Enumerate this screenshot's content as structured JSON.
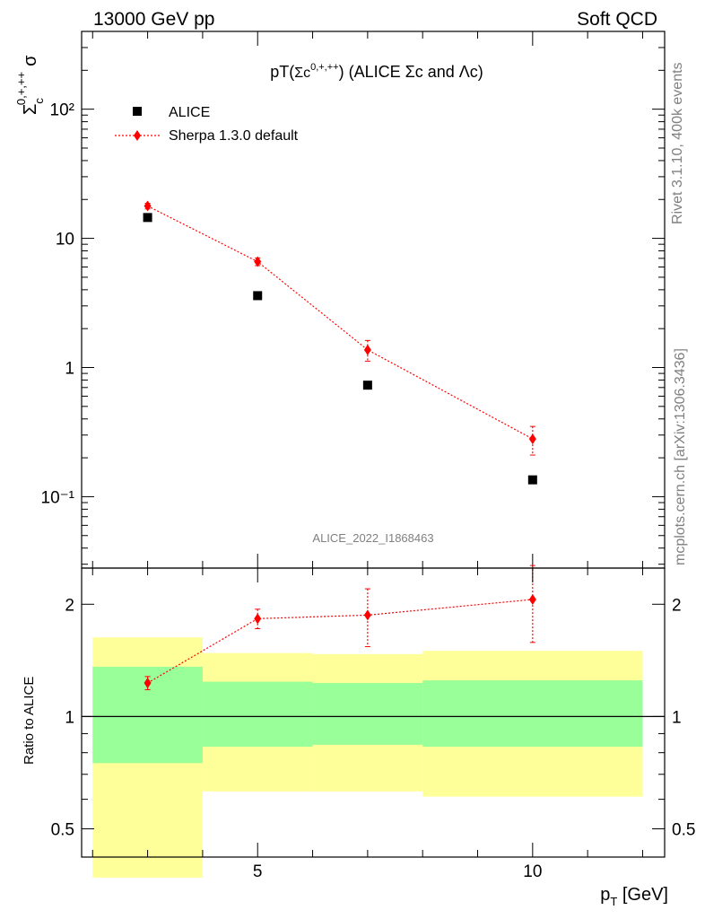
{
  "header": {
    "left": "13000 GeV pp",
    "right": "Soft QCD"
  },
  "side": {
    "rivet": "Rivet 3.1.10,  400k events",
    "mcplots": "mcplots.cern.ch [arXiv:1306.3436]"
  },
  "plot_title": "pT(Σc0,+,++) (ALICE Σc and Λc)",
  "plot_title_parts": {
    "pre": "pT(",
    "sym": "Σc",
    "sup": "0,+,++",
    "post": ") (ALICE Σc and Λc)"
  },
  "analysis_id": "ALICE_2022_I1868463",
  "ylabel": {
    "base": "Σ",
    "sub": "c",
    "sup": "0,+,++",
    "suffix": "σ"
  },
  "xlabel": {
    "base": "p",
    "sub": "T",
    "suffix": " [GeV]"
  },
  "ratio_ylabel": "Ratio to ALICE",
  "legend": [
    {
      "label": "ALICE"
    },
    {
      "label": "Sherpa 1.3.0 default"
    }
  ],
  "colors": {
    "data": "#000000",
    "mc": "#ff0000",
    "band_inner": "#99ff99",
    "band_outer": "#ffff99"
  },
  "chart_data": [
    {
      "type": "scatter",
      "xscale": "linear",
      "yscale": "log",
      "xlim": [
        1.8,
        12.4
      ],
      "ylim": [
        0.028,
        400
      ],
      "x_ticks": [
        "5",
        "10"
      ],
      "y_ticks": [
        "10⁻¹",
        "1",
        "10",
        "10²"
      ],
      "legend_position": "top-left",
      "series": [
        {
          "name": "ALICE",
          "x": [
            3,
            5,
            7,
            10
          ],
          "y": [
            14.5,
            3.6,
            0.73,
            0.135
          ],
          "x_bins": [
            [
              2,
              4
            ],
            [
              4,
              6
            ],
            [
              6,
              8
            ],
            [
              8,
              12
            ]
          ]
        },
        {
          "name": "Sherpa 1.3.0 default",
          "x": [
            3,
            5,
            7,
            10
          ],
          "y": [
            17.8,
            6.6,
            1.37,
            0.28
          ],
          "yerr_lo": [
            0.9,
            0.45,
            0.25,
            0.07
          ],
          "yerr_hi": [
            0.9,
            0.45,
            0.25,
            0.07
          ]
        }
      ]
    },
    {
      "type": "scatter",
      "xscale": "linear",
      "yscale": "log",
      "xlim": [
        1.8,
        12.4
      ],
      "ylim": [
        0.42,
        2.5
      ],
      "y_ticks": [
        "0.5",
        "1",
        "2"
      ],
      "ylabel": "Ratio to ALICE",
      "bands": [
        {
          "x": [
            2,
            4
          ],
          "inner": [
            0.75,
            1.36
          ],
          "outer": [
            0.37,
            1.63
          ]
        },
        {
          "x": [
            4,
            6
          ],
          "inner": [
            0.83,
            1.24
          ],
          "outer": [
            0.63,
            1.48
          ]
        },
        {
          "x": [
            6,
            8
          ],
          "inner": [
            0.84,
            1.23
          ],
          "outer": [
            0.63,
            1.47
          ]
        },
        {
          "x": [
            8,
            12
          ],
          "inner": [
            0.83,
            1.25
          ],
          "outer": [
            0.61,
            1.5
          ]
        }
      ],
      "series": [
        {
          "name": "Sherpa 1.3.0 default",
          "x": [
            3,
            5,
            7,
            10
          ],
          "y": [
            1.23,
            1.83,
            1.87,
            2.06
          ],
          "yerr_lo": [
            0.05,
            0.11,
            0.33,
            0.48
          ],
          "yerr_hi": [
            0.05,
            0.11,
            0.33,
            0.48
          ]
        }
      ]
    }
  ]
}
